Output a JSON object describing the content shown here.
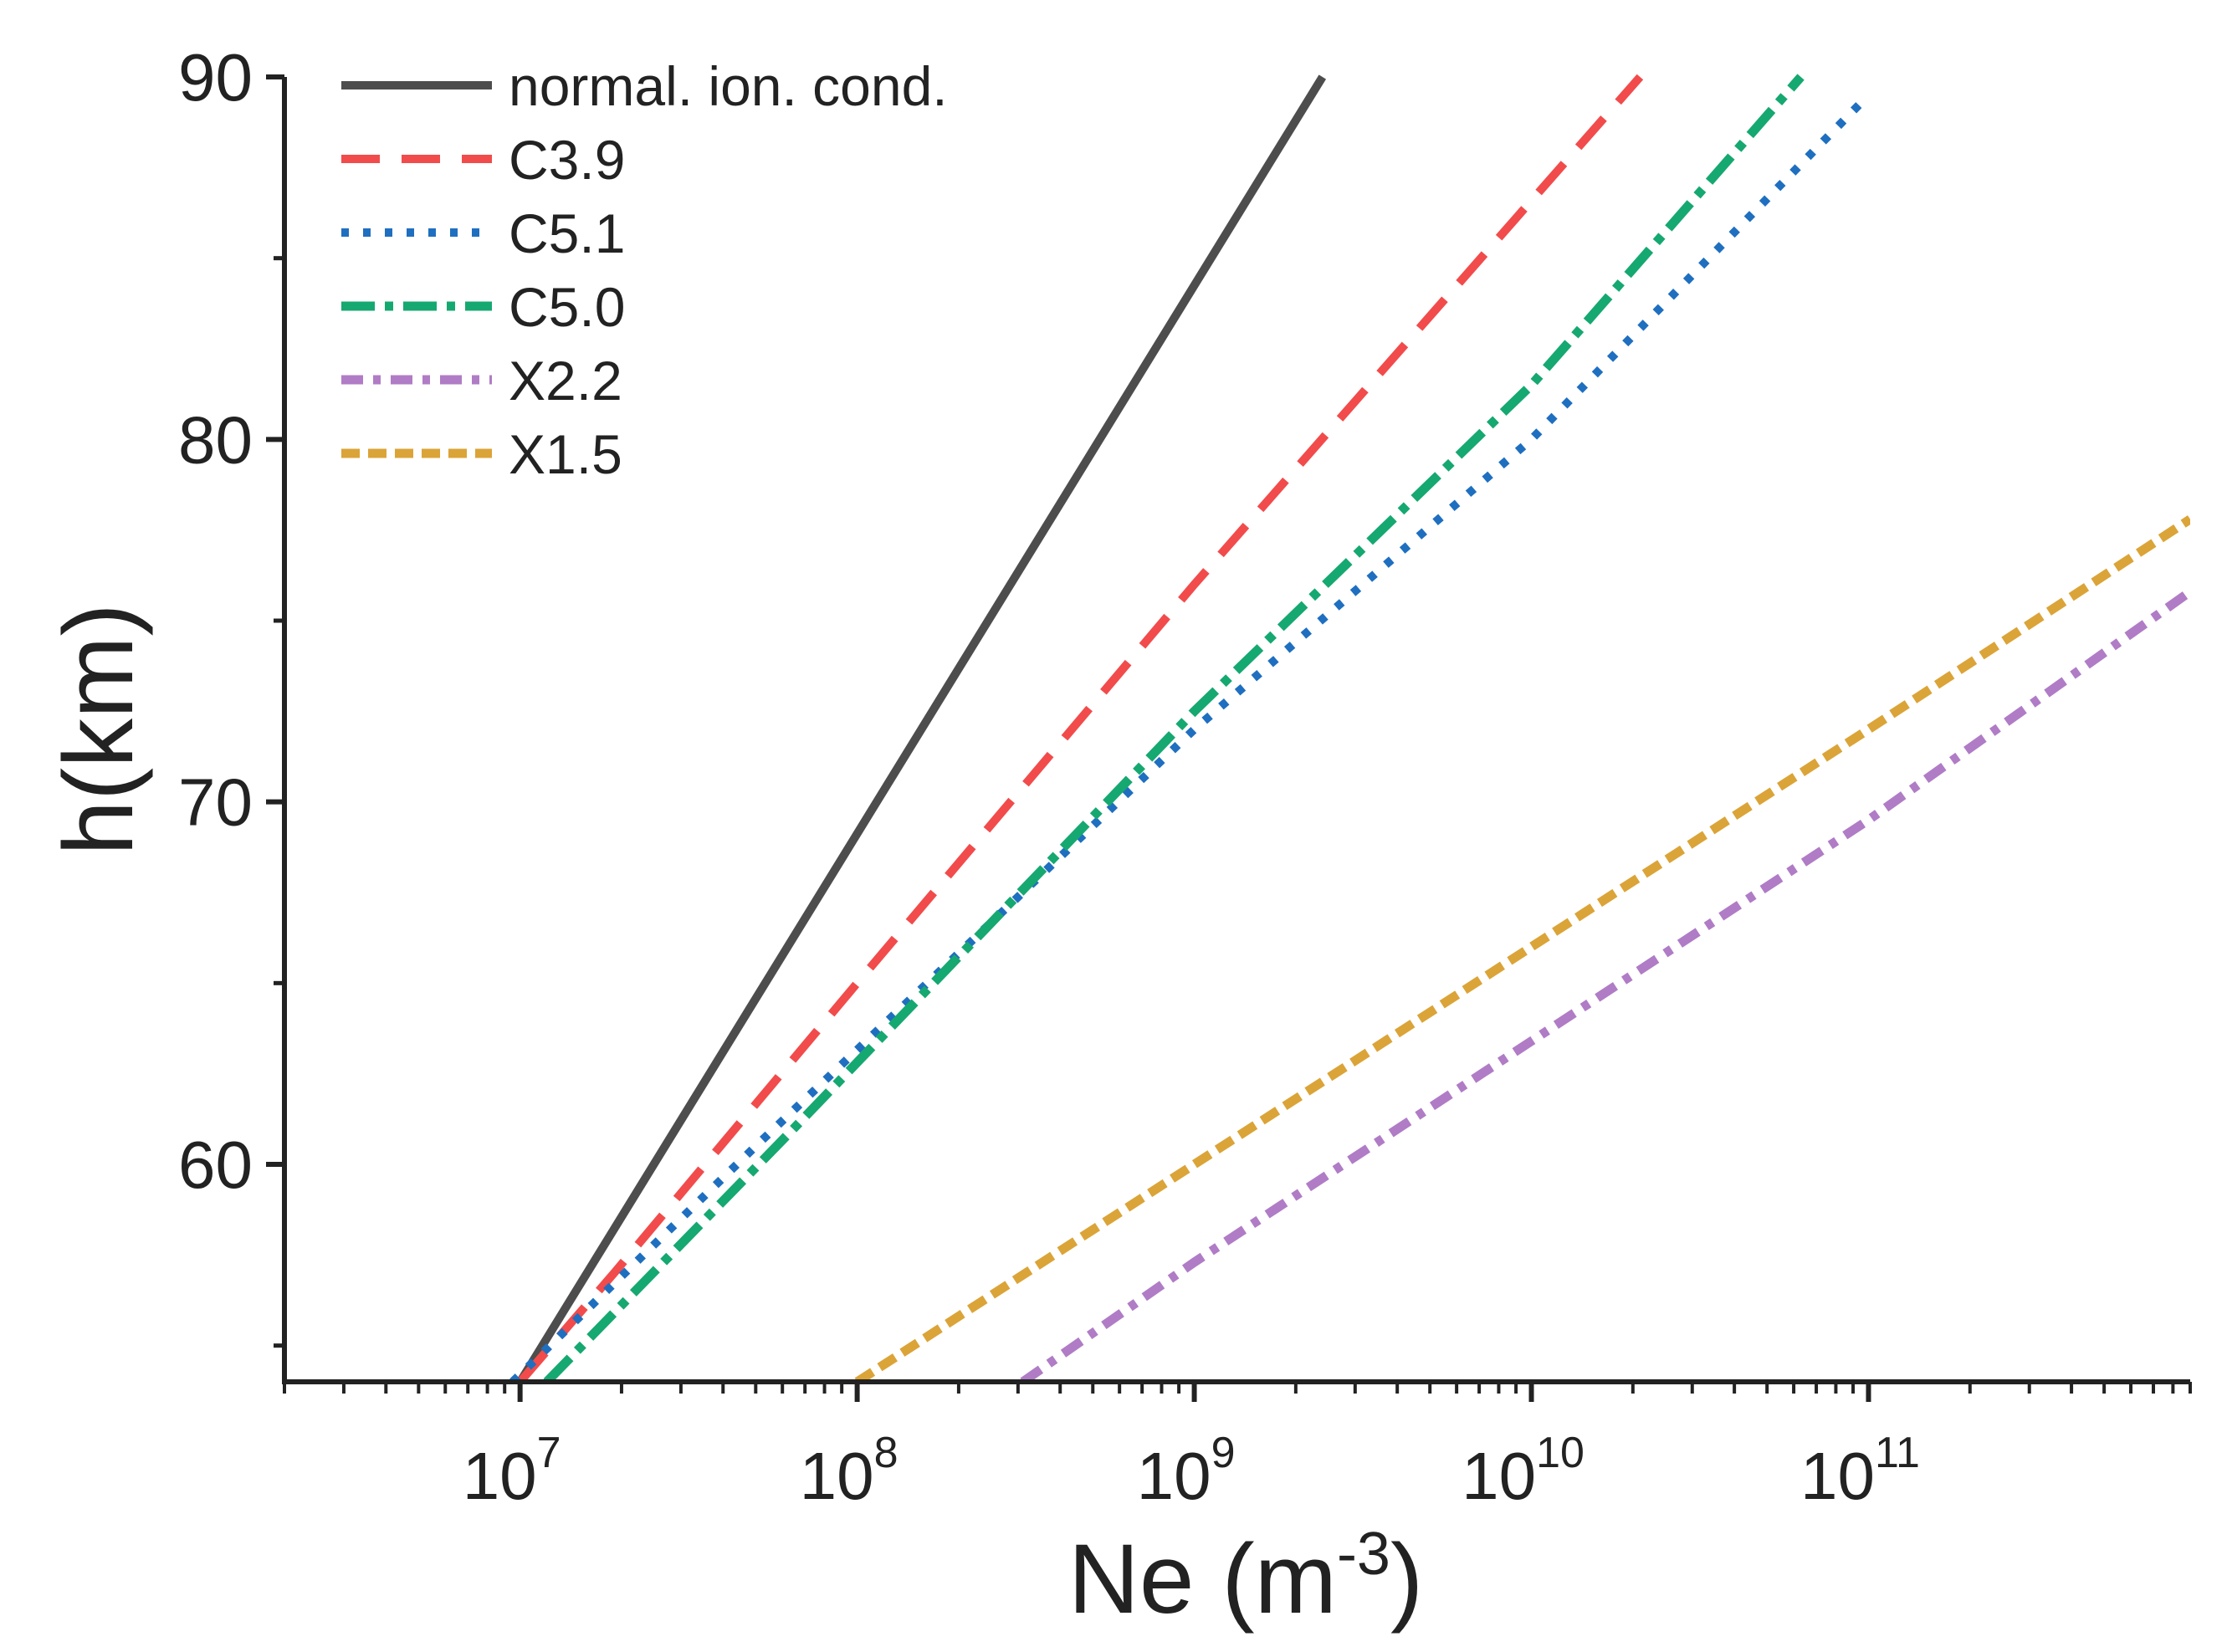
{
  "chart_data": {
    "type": "line",
    "xlabel": "Ne (m",
    "xlabel_sup": "-3",
    "xlabel_close": ")",
    "ylabel": "h(km)",
    "xscale": "log",
    "xlim": [
      2000000,
      900000000000
    ],
    "ylim": [
      54,
      90
    ],
    "grid": false,
    "legend_position": "top-left",
    "x_ticks": [
      {
        "base": "10",
        "exp": "7",
        "value": 10000000
      },
      {
        "base": "10",
        "exp": "8",
        "value": 100000000
      },
      {
        "base": "10",
        "exp": "9",
        "value": 1000000000
      },
      {
        "base": "10",
        "exp": "10",
        "value": 10000000000
      },
      {
        "base": "10",
        "exp": "11",
        "value": 100000000000
      }
    ],
    "y_ticks": [
      {
        "label": "60",
        "value": 60
      },
      {
        "label": "70",
        "value": 70
      },
      {
        "label": "80",
        "value": 80
      },
      {
        "label": "90",
        "value": 90
      }
    ],
    "series": [
      {
        "name": "normal. ion. cond.",
        "color": "#4d4d4d",
        "style": "solid",
        "points": [
          [
            10000000,
            54
          ],
          [
            2400000000,
            90
          ]
        ]
      },
      {
        "name": "C3.9",
        "color": "#f24b4b",
        "style": "dash",
        "points": [
          [
            10000000,
            54
          ],
          [
            19000000,
            57
          ],
          [
            100000000,
            65
          ],
          [
            1000000000,
            76
          ],
          [
            21000000000,
            90
          ]
        ]
      },
      {
        "name": "C5.1",
        "color": "#1f6fc0",
        "style": "dot",
        "points": [
          [
            9500000,
            54
          ],
          [
            50000000,
            60.5
          ],
          [
            1000000000,
            72
          ],
          [
            10000000000,
            80
          ],
          [
            100000000000,
            89.5
          ]
        ]
      },
      {
        "name": "C5.0",
        "color": "#16a871",
        "style": "dashdot",
        "points": [
          [
            12000000,
            54
          ],
          [
            65000000,
            61
          ],
          [
            1000000000,
            72.5
          ],
          [
            10000000000,
            81.5
          ],
          [
            63000000000,
            90
          ]
        ]
      },
      {
        "name": "X2.2",
        "color": "#b07cc6",
        "style": "dashdot2",
        "points": [
          [
            310000000,
            54
          ],
          [
            1000000000,
            57.3
          ],
          [
            10000000000,
            63.4
          ],
          [
            100000000000,
            69.5
          ],
          [
            900000000000,
            75.8
          ]
        ]
      },
      {
        "name": "X1.5",
        "color": "#dba438",
        "style": "shortdash",
        "points": [
          [
            100000000,
            54
          ],
          [
            1000000000,
            60
          ],
          [
            10000000000,
            66
          ],
          [
            100000000000,
            72
          ],
          [
            900000000000,
            77.8
          ]
        ]
      }
    ]
  }
}
